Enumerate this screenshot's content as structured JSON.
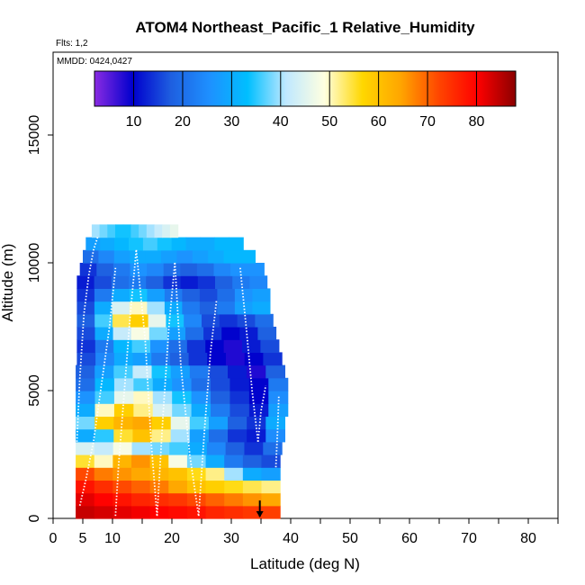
{
  "chart_data": {
    "type": "heatmap",
    "title": "ATOM4 Northeast_Pacific_1 Relative_Humidity",
    "flights_label": "Flts: 1,2",
    "dates_label": "MMDD: 0424,0427",
    "xlabel": "Latitude (deg N)",
    "ylabel": "Altitude (m)",
    "xlim": [
      0,
      85
    ],
    "ylim": [
      0,
      17500
    ],
    "x_ticks": [
      0,
      5,
      10,
      20,
      30,
      40,
      50,
      60,
      70,
      80
    ],
    "y_ticks": [
      0,
      5000,
      10000,
      15000
    ],
    "colorbar": {
      "range": [
        2,
        88
      ],
      "tick_values": [
        10,
        20,
        30,
        40,
        50,
        60,
        70,
        80
      ],
      "stops": [
        "#8a2be2",
        "#0000cd",
        "#1e5fe0",
        "#1e90ff",
        "#00bfff",
        "#bfe8ff",
        "#ffffe0",
        "#ffd700",
        "#ffa500",
        "#ff4500",
        "#ff0000",
        "#8b0000"
      ]
    },
    "altitude_bins_m": [
      0,
      500,
      1000,
      1500,
      2000,
      2500,
      3000,
      3500,
      4000,
      4500,
      5000,
      5500,
      6000,
      6500,
      7000,
      7500,
      8000,
      8500,
      9000,
      9500,
      10000,
      10500,
      11000,
      11500
    ],
    "rows": [
      {
        "alt": 0,
        "lat_range": [
          3.8,
          38.2
        ],
        "rh": [
          84,
          83,
          82,
          81,
          80,
          79,
          78,
          76,
          75,
          74,
          73
        ]
      },
      {
        "alt": 500,
        "lat_range": [
          3.8,
          38.2
        ],
        "rh": [
          82,
          80,
          78,
          76,
          75,
          74,
          72,
          70,
          68,
          66,
          64
        ]
      },
      {
        "alt": 1000,
        "lat_range": [
          3.8,
          38.2
        ],
        "rh": [
          78,
          75,
          72,
          70,
          68,
          64,
          60,
          58,
          56,
          54,
          52
        ]
      },
      {
        "alt": 1500,
        "lat_range": [
          3.8,
          38.2
        ],
        "rh": [
          72,
          68,
          66,
          64,
          62,
          60,
          56,
          52,
          40,
          30,
          28
        ]
      },
      {
        "alt": 2000,
        "lat_range": [
          3.8,
          38.2
        ],
        "rh": [
          55,
          50,
          62,
          66,
          60,
          48,
          38,
          30,
          22,
          18,
          16
        ]
      },
      {
        "alt": 2500,
        "lat_range": [
          3.8,
          38.5
        ],
        "rh": [
          44,
          42,
          48,
          40,
          38,
          36,
          30,
          24,
          18,
          14,
          20
        ]
      },
      {
        "alt": 3000,
        "lat_range": [
          3.8,
          39.0
        ],
        "rh": [
          30,
          35,
          55,
          60,
          52,
          40,
          28,
          20,
          14,
          12,
          25
        ]
      },
      {
        "alt": 3500,
        "lat_range": [
          3.8,
          39.0
        ],
        "rh": [
          38,
          58,
          62,
          64,
          58,
          46,
          36,
          28,
          18,
          14,
          30
        ]
      },
      {
        "alt": 4000,
        "lat_range": [
          3.8,
          39.5
        ],
        "rh": [
          30,
          50,
          58,
          52,
          44,
          38,
          30,
          22,
          16,
          12,
          28
        ]
      },
      {
        "alt": 4500,
        "lat_range": [
          3.8,
          39.5
        ],
        "rh": [
          26,
          36,
          46,
          50,
          40,
          34,
          26,
          18,
          14,
          10,
          25
        ]
      },
      {
        "alt": 5000,
        "lat_range": [
          3.8,
          39.5
        ],
        "rh": [
          20,
          32,
          40,
          36,
          30,
          26,
          20,
          16,
          12,
          10,
          22
        ]
      },
      {
        "alt": 5500,
        "lat_range": [
          3.8,
          39.0
        ],
        "rh": [
          18,
          28,
          36,
          42,
          34,
          28,
          22,
          16,
          12,
          8,
          18
        ]
      },
      {
        "alt": 6000,
        "lat_range": [
          4.0,
          38.5
        ],
        "rh": [
          16,
          24,
          30,
          28,
          22,
          18,
          14,
          10,
          8,
          10,
          14
        ]
      },
      {
        "alt": 6500,
        "lat_range": [
          4.0,
          38.0
        ],
        "rh": [
          14,
          22,
          32,
          36,
          26,
          20,
          14,
          10,
          8,
          12,
          16
        ]
      },
      {
        "alt": 7000,
        "lat_range": [
          4.0,
          37.5
        ],
        "rh": [
          16,
          30,
          42,
          48,
          38,
          28,
          20,
          14,
          10,
          12,
          18
        ]
      },
      {
        "alt": 7500,
        "lat_range": [
          4.0,
          37.0
        ],
        "rh": [
          18,
          36,
          54,
          58,
          46,
          34,
          24,
          16,
          14,
          16,
          20
        ]
      },
      {
        "alt": 8000,
        "lat_range": [
          4.0,
          36.5
        ],
        "rh": [
          16,
          30,
          44,
          50,
          40,
          30,
          22,
          18,
          22,
          28,
          30
        ]
      },
      {
        "alt": 8500,
        "lat_range": [
          4.0,
          36.5
        ],
        "rh": [
          14,
          22,
          30,
          34,
          28,
          22,
          18,
          16,
          20,
          26,
          28
        ]
      },
      {
        "alt": 9000,
        "lat_range": [
          4.0,
          36.0
        ],
        "rh": [
          12,
          16,
          20,
          22,
          18,
          14,
          12,
          14,
          18,
          22,
          24
        ]
      },
      {
        "alt": 9500,
        "lat_range": [
          4.5,
          35.5
        ],
        "rh": [
          14,
          18,
          22,
          26,
          24,
          20,
          18,
          20,
          24,
          26,
          26
        ]
      },
      {
        "alt": 10000,
        "lat_range": [
          5.0,
          34.0
        ],
        "rh": [
          20,
          24,
          28,
          30,
          30,
          28,
          26,
          28,
          30,
          32,
          32
        ]
      },
      {
        "alt": 10500,
        "lat_range": [
          5.5,
          32.0
        ],
        "rh": [
          28,
          30,
          32,
          34,
          36,
          34,
          32,
          30,
          30,
          32,
          32
        ]
      },
      {
        "alt": 11000,
        "lat_range": [
          6.5,
          21.0
        ],
        "rh": [
          40,
          38,
          36,
          34,
          34,
          36,
          38,
          40,
          42,
          44,
          46
        ]
      }
    ],
    "flight_tracks": [
      {
        "lat": [
          4.0,
          4.5,
          5.2,
          6.0,
          6.8,
          7.5
        ],
        "alt": [
          3000,
          5500,
          8000,
          9500,
          10500,
          11000
        ]
      },
      {
        "lat": [
          4.5,
          5.5,
          6.8,
          8.0,
          9.5,
          10.5
        ],
        "alt": [
          500,
          1500,
          3000,
          5000,
          7500,
          9800
        ]
      },
      {
        "lat": [
          10.5,
          11.0,
          12.0,
          13.0,
          14.0
        ],
        "alt": [
          100,
          2000,
          5000,
          8000,
          10500
        ]
      },
      {
        "lat": [
          14.0,
          15.5,
          16.5,
          17.5
        ],
        "alt": [
          10500,
          7000,
          3000,
          100
        ]
      },
      {
        "lat": [
          17.5,
          18.5,
          19.5,
          20.5
        ],
        "alt": [
          100,
          4000,
          7500,
          10000
        ]
      },
      {
        "lat": [
          20.5,
          21.5,
          23.0,
          24.5
        ],
        "alt": [
          10000,
          6000,
          2500,
          100
        ]
      },
      {
        "lat": [
          24.5,
          25.5,
          26.5,
          27.5
        ],
        "alt": [
          100,
          3500,
          6500,
          8500
        ]
      },
      {
        "lat": [
          31.5,
          32.5,
          33.5,
          34.5
        ],
        "alt": [
          9800,
          7500,
          5000,
          3000
        ]
      },
      {
        "lat": [
          34.5,
          35.0,
          35.8
        ],
        "alt": [
          3000,
          4200,
          5200
        ]
      },
      {
        "lat": [
          37.5,
          37.8,
          38.0
        ],
        "alt": [
          2000,
          3500,
          4800
        ]
      }
    ],
    "arrow_marker": {
      "lat": 34.8,
      "alt_top": 700,
      "alt_bottom": 0
    }
  }
}
